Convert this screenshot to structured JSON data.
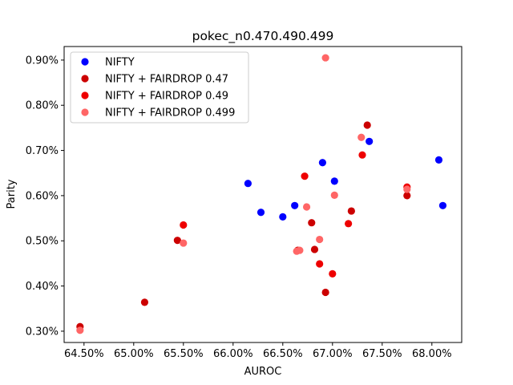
{
  "chart_data": {
    "type": "scatter",
    "title": "pokec_n0.470.490.499",
    "xlabel": "AUROC",
    "ylabel": "Parity",
    "xlim": [
      64.3,
      68.3
    ],
    "ylim": [
      0.275,
      0.93
    ],
    "x_ticks": [
      64.5,
      65.0,
      65.5,
      66.0,
      66.5,
      67.0,
      67.5,
      68.0
    ],
    "x_tick_labels": [
      "64.50%",
      "65.00%",
      "65.50%",
      "66.00%",
      "66.50%",
      "67.00%",
      "67.50%",
      "68.00%"
    ],
    "y_ticks": [
      0.3,
      0.4,
      0.5,
      0.6,
      0.7,
      0.8,
      0.9
    ],
    "y_tick_labels": [
      "0.30%",
      "0.40%",
      "0.50%",
      "0.60%",
      "0.70%",
      "0.80%",
      "0.90%"
    ],
    "legend_position": "top-left",
    "grid": false,
    "series": [
      {
        "name": "NIFTY",
        "color": "#0000ff",
        "points": [
          [
            66.15,
            0.627
          ],
          [
            66.28,
            0.563
          ],
          [
            66.5,
            0.553
          ],
          [
            66.62,
            0.578
          ],
          [
            66.9,
            0.673
          ],
          [
            67.02,
            0.632
          ],
          [
            67.37,
            0.72
          ],
          [
            68.07,
            0.679
          ],
          [
            68.11,
            0.578
          ]
        ]
      },
      {
        "name": "NIFTY + FAIRDROP 0.47",
        "color": "#cc0000",
        "points": [
          [
            64.46,
            0.31
          ],
          [
            65.11,
            0.364
          ],
          [
            65.44,
            0.501
          ],
          [
            66.65,
            0.479
          ],
          [
            66.79,
            0.54
          ],
          [
            66.82,
            0.481
          ],
          [
            66.93,
            0.386
          ],
          [
            67.19,
            0.566
          ],
          [
            67.35,
            0.756
          ],
          [
            67.75,
            0.6
          ]
        ]
      },
      {
        "name": "NIFTY + FAIRDROP 0.49",
        "color": "#ee0000",
        "points": [
          [
            65.5,
            0.535
          ],
          [
            66.72,
            0.643
          ],
          [
            66.87,
            0.449
          ],
          [
            67.0,
            0.427
          ],
          [
            67.16,
            0.538
          ],
          [
            67.3,
            0.69
          ],
          [
            67.75,
            0.619
          ]
        ]
      },
      {
        "name": "NIFTY + FAIRDROP 0.499",
        "color": "#ff6666",
        "points": [
          [
            64.46,
            0.302
          ],
          [
            65.5,
            0.495
          ],
          [
            66.64,
            0.477
          ],
          [
            66.67,
            0.479
          ],
          [
            66.74,
            0.575
          ],
          [
            66.87,
            0.503
          ],
          [
            66.93,
            0.905
          ],
          [
            67.02,
            0.601
          ],
          [
            67.29,
            0.729
          ],
          [
            67.75,
            0.614
          ]
        ]
      }
    ]
  }
}
